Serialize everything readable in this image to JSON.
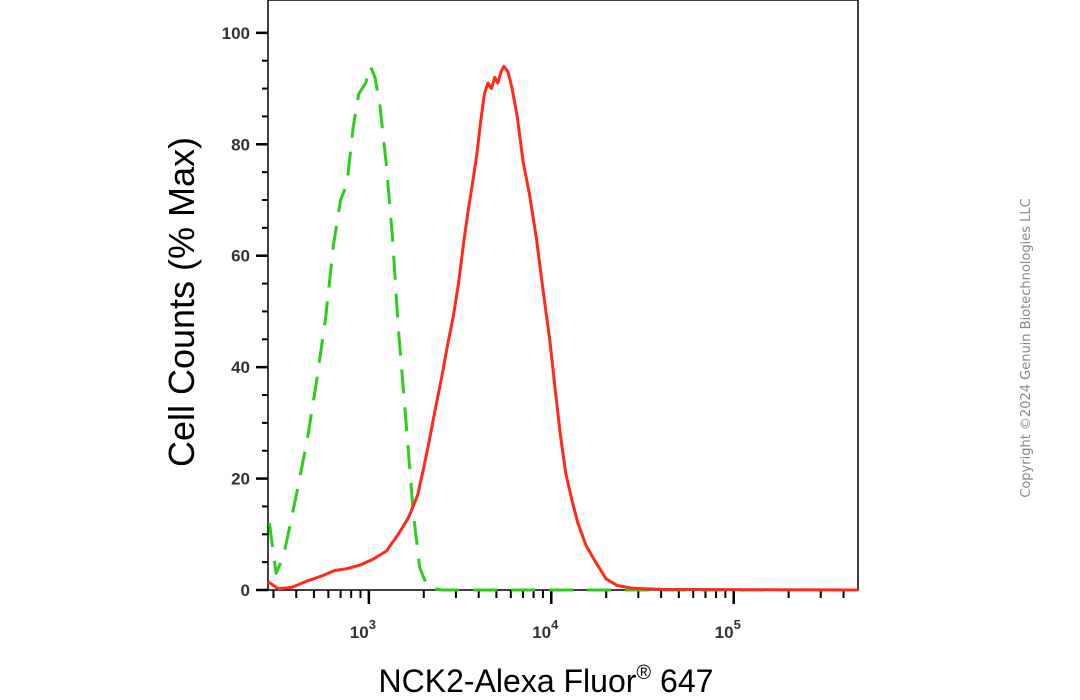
{
  "chart_data": {
    "type": "line",
    "x_scale": "log",
    "xlabel": "NCK2-Alexa Fluor",
    "xlabel_sup": "®",
    "xlabel_suffix": " 647",
    "ylabel": "Cell Counts (% Max)",
    "xlim": [
      280,
      480000
    ],
    "ylim": [
      0,
      105
    ],
    "x_ticks": [
      {
        "value": 1000,
        "base": "10",
        "exp": "3"
      },
      {
        "value": 10000,
        "base": "10",
        "exp": "4"
      },
      {
        "value": 100000,
        "base": "10",
        "exp": "5"
      }
    ],
    "y_ticks": [
      0,
      20,
      40,
      60,
      80,
      100
    ],
    "grid": false,
    "series": [
      {
        "color": "#2ecc1e",
        "dash": "dashed",
        "points": [
          [
            285,
            12
          ],
          [
            310,
            3
          ],
          [
            340,
            6
          ],
          [
            400,
            17
          ],
          [
            460,
            27
          ],
          [
            520,
            38
          ],
          [
            580,
            49
          ],
          [
            640,
            62
          ],
          [
            700,
            70
          ],
          [
            760,
            73
          ],
          [
            820,
            83
          ],
          [
            880,
            89
          ],
          [
            960,
            91
          ],
          [
            1020,
            94
          ],
          [
            1080,
            92
          ],
          [
            1150,
            87
          ],
          [
            1250,
            76
          ],
          [
            1350,
            63
          ],
          [
            1450,
            47
          ],
          [
            1600,
            30
          ],
          [
            1750,
            14
          ],
          [
            1900,
            4
          ],
          [
            2100,
            0.5
          ],
          [
            2500,
            0
          ],
          [
            480000,
            0
          ]
        ]
      },
      {
        "color": "#ff2a1a",
        "dash": "solid",
        "points": [
          [
            280,
            1.5
          ],
          [
            320,
            0.2
          ],
          [
            380,
            0.5
          ],
          [
            450,
            1.5
          ],
          [
            550,
            2.5
          ],
          [
            650,
            3.5
          ],
          [
            750,
            3.8
          ],
          [
            900,
            4.5
          ],
          [
            1050,
            5.5
          ],
          [
            1250,
            7
          ],
          [
            1450,
            10
          ],
          [
            1650,
            13
          ],
          [
            1850,
            17
          ],
          [
            2000,
            22
          ],
          [
            2150,
            27
          ],
          [
            2300,
            32
          ],
          [
            2500,
            38
          ],
          [
            2700,
            44
          ],
          [
            2900,
            49
          ],
          [
            3100,
            55
          ],
          [
            3300,
            62
          ],
          [
            3500,
            68
          ],
          [
            3700,
            73
          ],
          [
            3900,
            78
          ],
          [
            4100,
            84
          ],
          [
            4300,
            89
          ],
          [
            4500,
            91
          ],
          [
            4700,
            90
          ],
          [
            4900,
            92
          ],
          [
            5100,
            91
          ],
          [
            5300,
            93
          ],
          [
            5500,
            94
          ],
          [
            5800,
            93
          ],
          [
            6100,
            90
          ],
          [
            6500,
            85
          ],
          [
            7000,
            77
          ],
          [
            7600,
            71
          ],
          [
            8300,
            63
          ],
          [
            9000,
            54
          ],
          [
            9800,
            45
          ],
          [
            10500,
            36
          ],
          [
            11200,
            28
          ],
          [
            12000,
            21
          ],
          [
            13000,
            16
          ],
          [
            14000,
            12
          ],
          [
            15500,
            8
          ],
          [
            17500,
            5
          ],
          [
            20000,
            2
          ],
          [
            23000,
            0.8
          ],
          [
            28000,
            0.3
          ],
          [
            40000,
            0.1
          ],
          [
            480000,
            0
          ]
        ]
      }
    ]
  },
  "watermark": "Copyright ©2024 Genuin Biotechnologies LLC"
}
